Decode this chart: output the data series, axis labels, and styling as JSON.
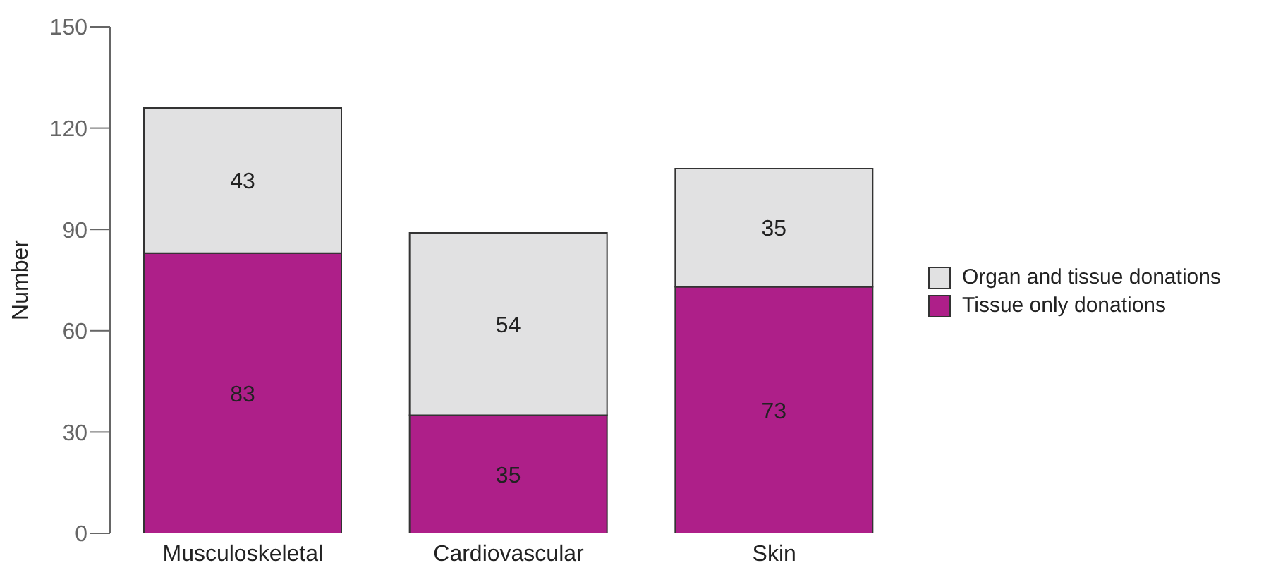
{
  "chart_data": {
    "type": "bar",
    "stacked": true,
    "categories": [
      "Musculoskeletal",
      "Cardiovascular",
      "Skin"
    ],
    "ylabel": "Number",
    "ylim": [
      0,
      150
    ],
    "yticks": [
      0,
      30,
      60,
      90,
      120,
      150
    ],
    "grid": false,
    "legend": "right",
    "data_labels": true,
    "series": [
      {
        "name": "Tissue only donations",
        "color": "#ae1f89",
        "values": [
          83,
          35,
          73
        ]
      },
      {
        "name": "Organ and tissue donations",
        "color": "#e1e1e2",
        "values": [
          43,
          54,
          35
        ]
      }
    ]
  }
}
